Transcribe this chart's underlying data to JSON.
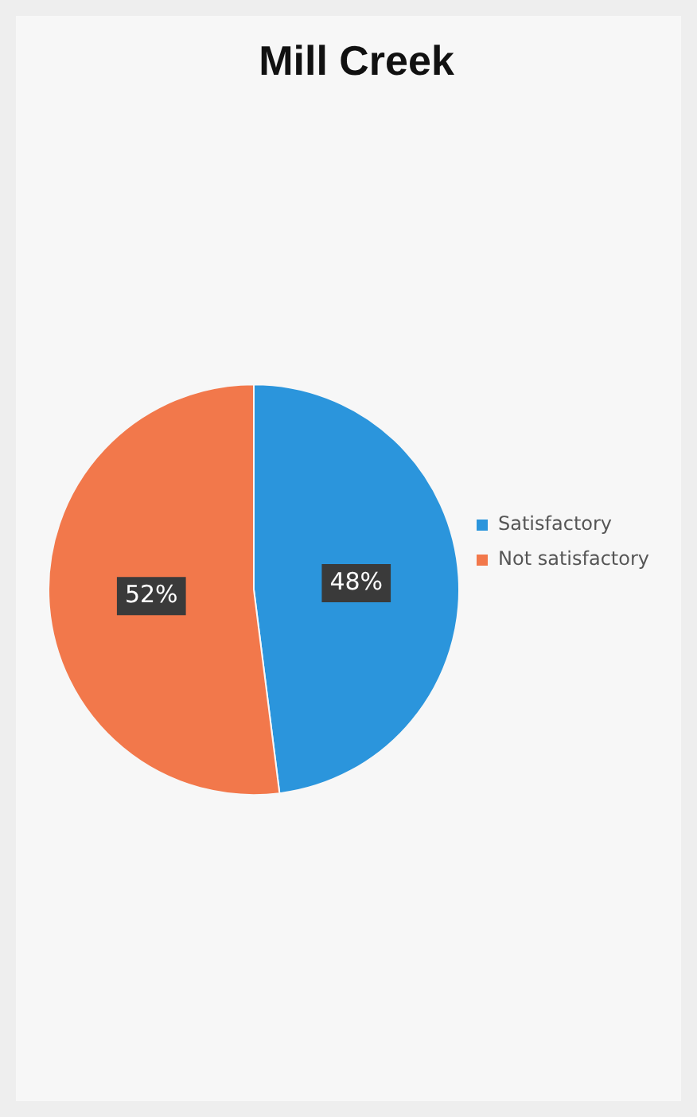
{
  "chart_data": {
    "type": "pie",
    "title": "Mill Creek",
    "categories": [
      "Satisfactory",
      "Not satisfactory"
    ],
    "values": [
      48,
      52
    ],
    "colors": [
      "#2b95dc",
      "#f2784b"
    ],
    "value_labels": [
      "48%",
      "52%"
    ],
    "legend": "right"
  }
}
